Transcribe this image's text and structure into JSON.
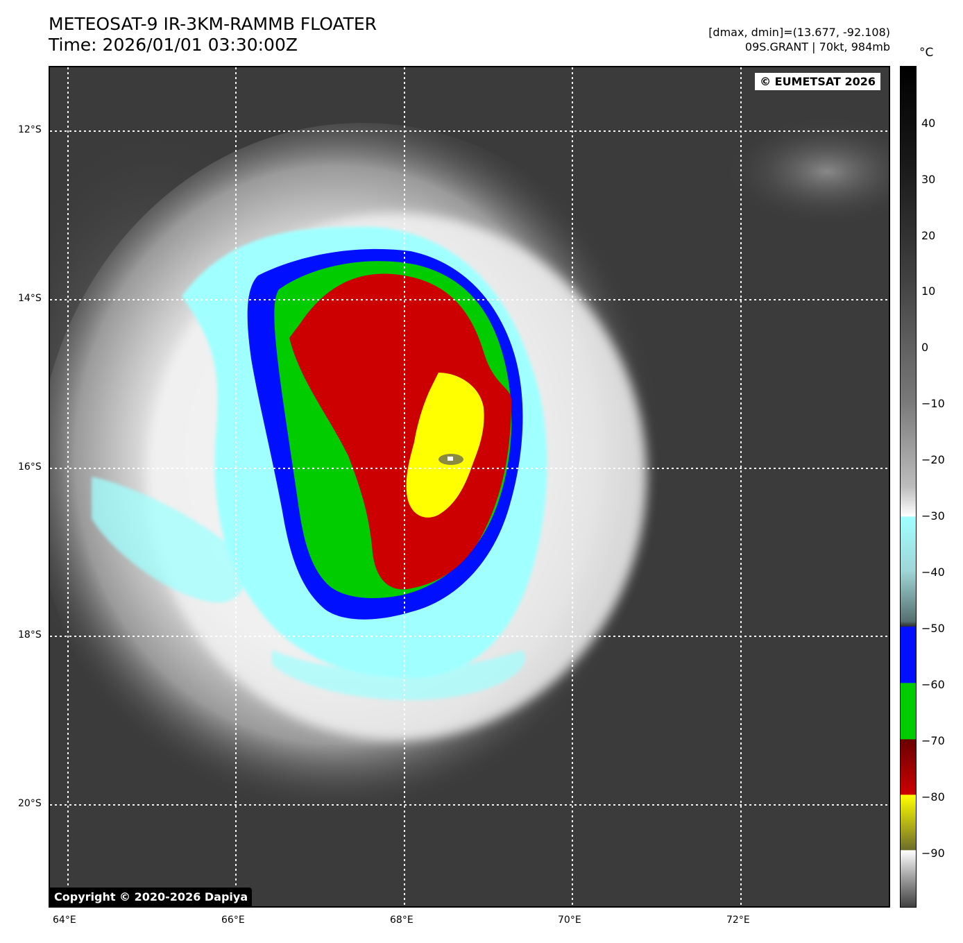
{
  "header": {
    "title": "METEOSAT-9 IR-3KM-RAMMB FLOATER",
    "time": "Time: 2026/01/01 03:30:00Z",
    "dmax_dmin": "[dmax, dmin]=(13.677, -92.108)",
    "storm_info": "09S.GRANT | 70kt, 984mb"
  },
  "badges": {
    "eumetsat": "© EUMETSAT 2026",
    "copyright": "Copyright © 2020-2026 Dapiya"
  },
  "axes": {
    "lat_labels": [
      "12°S",
      "14°S",
      "16°S",
      "18°S",
      "20°S"
    ],
    "lon_labels": [
      "64°E",
      "66°E",
      "68°E",
      "70°E",
      "72°E"
    ]
  },
  "colorbar": {
    "unit": "°C",
    "ticks": [
      "40",
      "30",
      "20",
      "10",
      "0",
      "−10",
      "−20",
      "−30",
      "−40",
      "−50",
      "−60",
      "−70",
      "−80",
      "−90"
    ],
    "colors": {
      "yellow": "#ffff00",
      "red": "#cc0000",
      "green": "#00cc00",
      "blue": "#0010ff",
      "cyan": "#a0ffff"
    }
  }
}
